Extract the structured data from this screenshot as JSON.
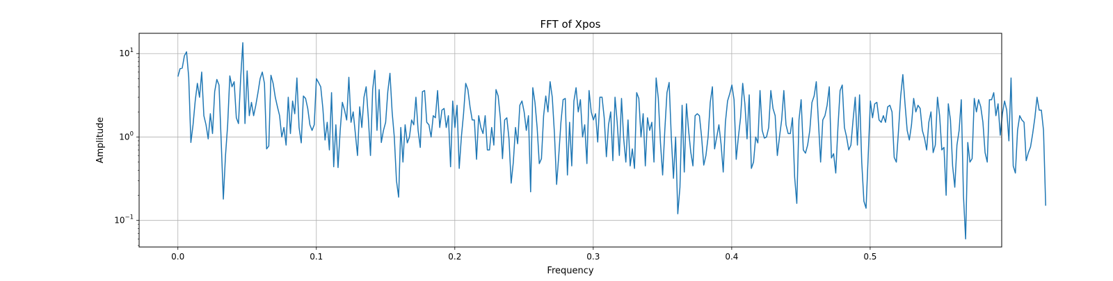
{
  "chart_data": {
    "type": "line",
    "title": "FFT of Xpos",
    "xlabel": "Frequency",
    "ylabel": "Amplitude",
    "xlim": [
      -0.028,
      0.595
    ],
    "ylim": [
      0.048,
      17.5
    ],
    "yscale": "log",
    "grid": true,
    "line_color": "#1f77b4",
    "x_ticks": [
      {
        "value": 0.0,
        "label": "0.0"
      },
      {
        "value": 0.1,
        "label": "0.1"
      },
      {
        "value": 0.2,
        "label": "0.2"
      },
      {
        "value": 0.3,
        "label": "0.3"
      },
      {
        "value": 0.4,
        "label": "0.4"
      },
      {
        "value": 0.5,
        "label": "0.5"
      }
    ],
    "y_ticks": [
      {
        "value": 0.1,
        "base": "10",
        "exp": "−1"
      },
      {
        "value": 1,
        "base": "10",
        "exp": "0"
      },
      {
        "value": 10,
        "base": "10",
        "exp": "1"
      }
    ],
    "series": [
      {
        "x_start": 0.0,
        "x_step": 0.001563,
        "values": [
          5.3,
          6.6,
          6.7,
          9.4,
          10.5,
          5.2,
          0.86,
          1.4,
          2.7,
          4.4,
          3.0,
          6.0,
          1.8,
          1.4,
          0.95,
          1.9,
          1.1,
          3.5,
          4.9,
          4.2,
          0.9,
          0.18,
          0.6,
          1.4,
          5.4,
          4.0,
          4.6,
          1.7,
          1.45,
          5.0,
          13.5,
          1.45,
          6.2,
          1.8,
          2.6,
          1.8,
          2.4,
          3.4,
          5.0,
          6.0,
          4.4,
          0.72,
          0.78,
          5.5,
          4.4,
          3.0,
          2.3,
          1.8,
          1.0,
          1.3,
          0.8,
          3.0,
          1.1,
          2.7,
          1.9,
          5.1,
          1.3,
          0.85,
          3.1,
          2.9,
          2.2,
          1.4,
          1.2,
          1.4,
          5.0,
          4.5,
          4.0,
          2.2,
          0.92,
          1.5,
          0.7,
          3.4,
          0.44,
          1.4,
          0.43,
          1.2,
          2.6,
          2.1,
          1.6,
          5.2,
          1.5,
          2.0,
          1.1,
          0.6,
          2.3,
          1.3,
          3.0,
          4.0,
          1.7,
          0.6,
          3.7,
          6.3,
          1.2,
          3.7,
          0.86,
          1.2,
          1.5,
          3.5,
          5.8,
          2.0,
          1.0,
          0.3,
          0.19,
          1.3,
          0.5,
          1.4,
          0.85,
          1.0,
          1.6,
          1.4,
          3.0,
          1.2,
          0.75,
          3.5,
          3.6,
          1.5,
          1.4,
          1.0,
          1.8,
          1.7,
          3.6,
          1.3,
          2.1,
          2.2,
          1.3,
          1.8,
          0.44,
          2.7,
          1.3,
          2.4,
          0.42,
          1.0,
          1.9,
          4.4,
          3.7,
          2.3,
          1.6,
          1.6,
          0.54,
          1.8,
          1.3,
          1.1,
          1.8,
          0.7,
          0.7,
          1.3,
          0.8,
          3.7,
          3.1,
          1.7,
          0.55,
          1.6,
          1.7,
          0.95,
          0.28,
          0.5,
          1.3,
          0.83,
          2.4,
          2.7,
          2.0,
          1.2,
          1.8,
          0.22,
          3.9,
          2.6,
          1.3,
          0.48,
          0.55,
          1.8,
          3.1,
          2.0,
          4.6,
          3.0,
          1.1,
          0.27,
          0.6,
          1.5,
          2.8,
          2.9,
          0.35,
          1.5,
          0.45,
          2.7,
          3.9,
          2.0,
          2.8,
          1.0,
          1.4,
          0.48,
          3.6,
          2.0,
          1.6,
          1.9,
          0.87,
          3.0,
          3.0,
          1.7,
          0.58,
          1.4,
          2.0,
          0.52,
          3.0,
          1.5,
          0.6,
          2.9,
          0.95,
          0.5,
          1.6,
          0.45,
          0.72,
          0.42,
          3.4,
          2.9,
          1.0,
          1.9,
          0.45,
          1.7,
          1.2,
          1.5,
          0.5,
          5.1,
          2.9,
          0.85,
          0.35,
          1.2,
          3.4,
          4.5,
          1.0,
          0.32,
          1.0,
          0.12,
          0.25,
          2.4,
          0.38,
          2.5,
          1.2,
          0.66,
          0.45,
          1.8,
          1.9,
          1.8,
          1.0,
          0.46,
          0.6,
          1.0,
          2.6,
          4.0,
          0.72,
          1.0,
          1.4,
          0.82,
          0.38,
          1.5,
          2.7,
          3.3,
          4.2,
          2.8,
          0.54,
          1.0,
          1.7,
          4.4,
          2.5,
          0.95,
          3.2,
          0.42,
          0.5,
          1.0,
          0.85,
          3.6,
          1.2,
          0.97,
          1.0,
          1.3,
          3.6,
          2.2,
          1.8,
          0.6,
          1.0,
          1.6,
          3.6,
          1.4,
          1.1,
          1.1,
          1.7,
          0.33,
          0.16,
          1.6,
          2.8,
          0.7,
          0.64,
          0.8,
          1.2,
          2.6,
          3.1,
          4.6,
          1.5,
          0.5,
          1.6,
          1.8,
          2.4,
          4.0,
          0.56,
          0.63,
          0.37,
          1.3,
          3.6,
          4.2,
          1.3,
          1.0,
          0.7,
          0.8,
          1.6,
          3.0,
          0.8,
          3.2,
          0.5,
          0.17,
          0.14,
          0.6,
          2.7,
          1.7,
          2.5,
          2.6,
          1.6,
          1.5,
          1.8,
          1.5,
          2.3,
          2.4,
          2.0,
          0.57,
          0.5,
          1.2,
          3.1,
          5.6,
          2.5,
          1.2,
          0.92,
          1.4,
          2.9,
          2.0,
          2.4,
          2.2,
          1.2,
          0.97,
          0.7,
          1.5,
          2.0,
          0.65,
          0.8,
          3.0,
          1.8,
          0.7,
          0.75,
          0.2,
          2.5,
          1.6,
          0.45,
          0.25,
          0.8,
          1.2,
          2.8,
          0.2,
          0.06,
          0.86,
          0.5,
          0.55,
          2.9,
          2.0,
          2.8,
          2.3,
          1.5,
          0.65,
          0.5,
          2.8,
          2.8,
          3.4,
          1.8,
          2.5,
          1.05,
          1.9,
          2.7,
          2.1,
          0.9,
          5.1,
          0.45,
          0.37,
          1.2,
          1.8,
          1.6,
          1.5,
          0.52,
          0.65,
          0.76,
          1.1,
          1.7,
          3.0,
          2.1,
          2.1,
          1.2,
          0.15
        ]
      }
    ]
  }
}
